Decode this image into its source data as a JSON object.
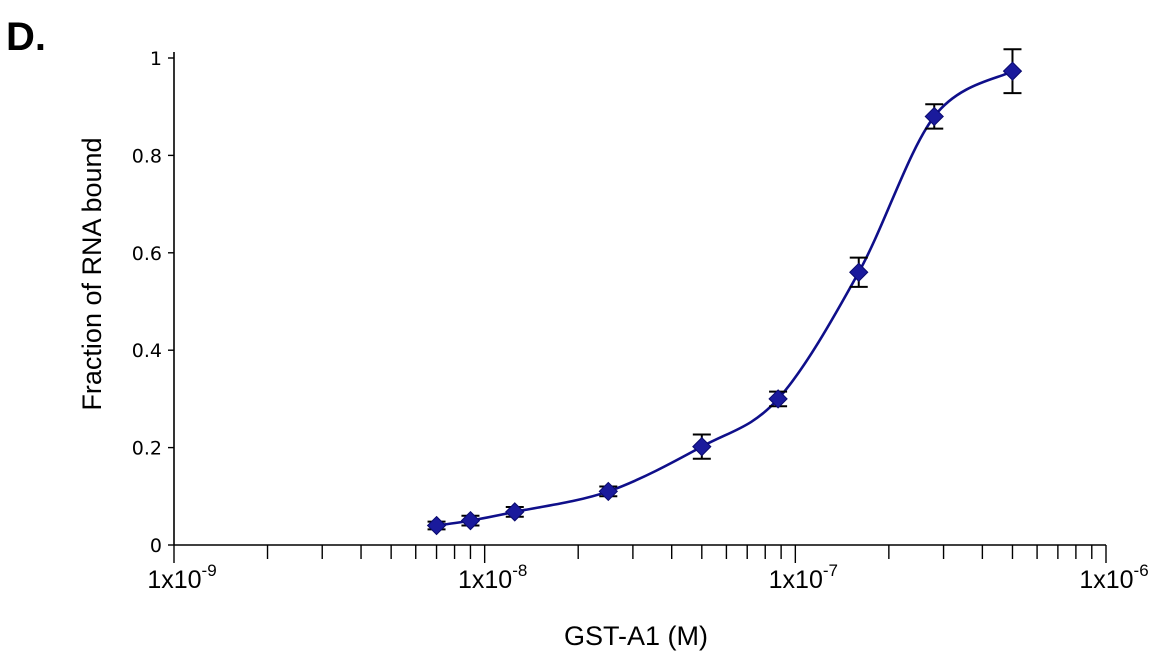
{
  "figure": {
    "panel_label": "D."
  },
  "chart_data": {
    "type": "scatter",
    "title": "",
    "xlabel": "GST-A1 (M)",
    "ylabel": "Fraction of RNA bound",
    "x_scale": "log",
    "xlim": [
      1e-09,
      1e-06
    ],
    "ylim": [
      0,
      1
    ],
    "grid": false,
    "x_tick_labels": [
      {
        "value": 1e-09,
        "mantissa": "1x10",
        "exponent": "-9"
      },
      {
        "value": 1e-08,
        "mantissa": "1x10",
        "exponent": "-8"
      },
      {
        "value": 1e-07,
        "mantissa": "1x10",
        "exponent": "-7"
      },
      {
        "value": 1e-06,
        "mantissa": "1x10",
        "exponent": "-6"
      }
    ],
    "y_tick_labels": [
      {
        "value": 0,
        "label": "0"
      },
      {
        "value": 0.2,
        "label": "0.2"
      },
      {
        "value": 0.4,
        "label": "0.4"
      },
      {
        "value": 0.6,
        "label": "0.6"
      },
      {
        "value": 0.8,
        "label": "0.8"
      },
      {
        "value": 1,
        "label": "1"
      }
    ],
    "series": [
      {
        "marker": "diamond",
        "color": "#1a1a9c",
        "line_color": "#0f0f8a",
        "points": [
          {
            "x": 7e-09,
            "y": 0.04,
            "err": 0.008
          },
          {
            "x": 9e-09,
            "y": 0.05,
            "err": 0.01
          },
          {
            "x": 1.25e-08,
            "y": 0.068,
            "err": 0.01
          },
          {
            "x": 2.5e-08,
            "y": 0.11,
            "err": 0.01
          },
          {
            "x": 5e-08,
            "y": 0.202,
            "err": 0.025
          },
          {
            "x": 8.8e-08,
            "y": 0.3,
            "err": 0.015
          },
          {
            "x": 1.6e-07,
            "y": 0.56,
            "err": 0.03
          },
          {
            "x": 2.8e-07,
            "y": 0.88,
            "err": 0.025
          },
          {
            "x": 5e-07,
            "y": 0.973,
            "err": 0.045
          }
        ]
      }
    ]
  }
}
